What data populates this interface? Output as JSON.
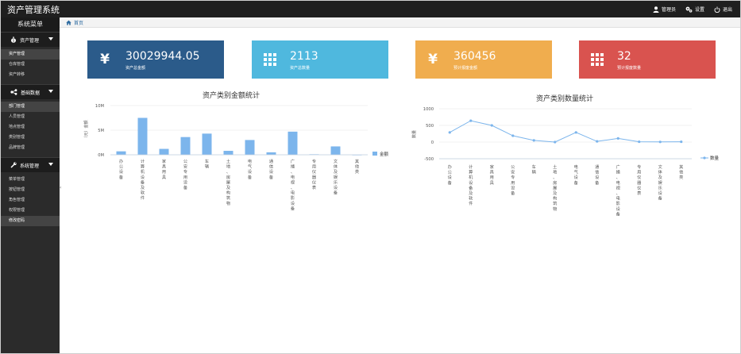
{
  "app_title": "资产管理系统",
  "top_actions": {
    "admin": "管理员",
    "settings": "设置",
    "logout": "退出"
  },
  "sidebar": {
    "header": "系统菜单",
    "sections": [
      {
        "label": "资产管理",
        "items": [
          "资产管理",
          "仓库管理",
          "资产转移"
        ]
      },
      {
        "label": "基础数据",
        "items": [
          "部门管理",
          "人员管理",
          "地点管理",
          "类别管理",
          "品牌管理"
        ]
      },
      {
        "label": "系统管理",
        "items": [
          "菜单管理",
          "按钮管理",
          "角色管理",
          "权限管理",
          "修改密码"
        ]
      }
    ]
  },
  "breadcrumb": {
    "home": "首页"
  },
  "cards": [
    {
      "value": "30029944.05",
      "label": "资产总金额",
      "color": "#2b5b8a",
      "icon": "yen-icon"
    },
    {
      "value": "2113",
      "label": "资产总数量",
      "color": "#4fb8de",
      "icon": "grid-icon"
    },
    {
      "value": "360456",
      "label": "预计报废金额",
      "color": "#f0ad4e",
      "icon": "yen-icon"
    },
    {
      "value": "32",
      "label": "预计报废数量",
      "color": "#d9534f",
      "icon": "grid-icon"
    }
  ],
  "chart_data": [
    {
      "type": "bar",
      "title": "资产类别金额统计",
      "ylabel": "（元）金额",
      "categories": [
        "办公设备",
        "计算机设备及软件",
        "家具用具",
        "公安专用设备",
        "车辆",
        "土地、房屋及构筑物",
        "电气设备",
        "通信设备",
        "广播、电视、电影设备",
        "专用仪器仪表",
        "文体及娱乐设备",
        "其他类"
      ],
      "series": [
        {
          "name": "金额",
          "values": [
            700000,
            7500000,
            1200000,
            3600000,
            4300000,
            800000,
            3000000,
            500000,
            4700000,
            100000,
            1700000,
            0
          ]
        }
      ],
      "yticks": [
        "0M",
        "5M",
        "10M"
      ],
      "ylim": [
        0,
        10000000
      ],
      "legend": "right",
      "color": "#7cb5ec"
    },
    {
      "type": "line",
      "title": "资产类别数量统计",
      "ylabel": "数量",
      "categories": [
        "办公设备",
        "计算机设备及软件",
        "家具用具",
        "公安专用设备",
        "车辆",
        "土地、房屋及构筑物",
        "电气设备",
        "通信设备",
        "广播、电视、电影设备",
        "专用仪器仪表",
        "文体及娱乐设备",
        "其他类"
      ],
      "series": [
        {
          "name": "数量",
          "values": [
            290,
            640,
            500,
            190,
            50,
            0,
            290,
            20,
            110,
            10,
            5,
            10
          ]
        }
      ],
      "yticks": [
        "-500",
        "0",
        "500",
        "1000"
      ],
      "ylim": [
        -500,
        1000
      ],
      "legend": "right",
      "color": "#7cb5ec"
    }
  ]
}
